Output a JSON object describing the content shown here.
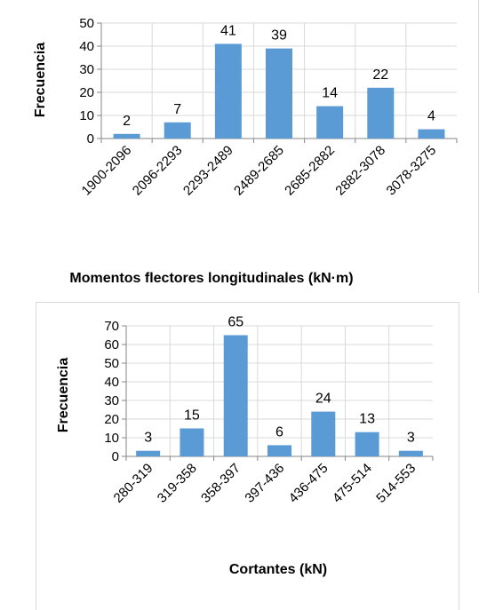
{
  "chart_data": [
    {
      "type": "bar",
      "title": "",
      "xlabel": "Momentos flectores longitudinales (kN·m)",
      "ylabel": "Frecuencia",
      "categories": [
        "1900-2096",
        "2096-2293",
        "2293-2489",
        "2489-2685",
        "2685-2882",
        "2882-3078",
        "3078-3275"
      ],
      "values": [
        2,
        7,
        41,
        39,
        14,
        22,
        4
      ],
      "data_labels": [
        "2",
        "7",
        "41",
        "39",
        "14",
        "22",
        "4"
      ],
      "ylim": [
        0,
        50
      ],
      "yticks": [
        "0",
        "10",
        "20",
        "30",
        "40",
        "50"
      ],
      "grid": true,
      "bar_color": "#5b9bd5"
    },
    {
      "type": "bar",
      "title": "",
      "xlabel": "Cortantes (kN)",
      "ylabel": "Frecuencia",
      "categories": [
        "280-319",
        "319-358",
        "358-397",
        "397-436",
        "436-475",
        "475-514",
        "514-553"
      ],
      "values": [
        3,
        15,
        65,
        6,
        24,
        13,
        3
      ],
      "data_labels": [
        "3",
        "15",
        "65",
        "6",
        "24",
        "13",
        "3"
      ],
      "ylim": [
        0,
        70
      ],
      "yticks": [
        "0",
        "10",
        "20",
        "30",
        "40",
        "50",
        "60",
        "70"
      ],
      "grid": true,
      "bar_color": "#5b9bd5"
    }
  ]
}
